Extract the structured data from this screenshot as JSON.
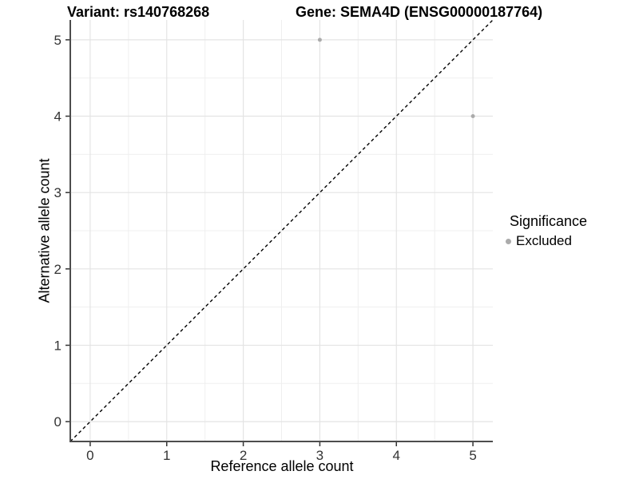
{
  "titles": {
    "variant": "Variant: rs140768268",
    "gene": "Gene: SEMA4D (ENSG00000187764)"
  },
  "legend": {
    "title": "Significance",
    "items": [
      {
        "label": "Excluded",
        "color": "#ababab",
        "marker": "circle-icon"
      }
    ]
  },
  "colors": {
    "point": "#ababab",
    "grid_major": "#e4e4e4",
    "grid_minor": "#efefef",
    "axis_line": "#4d4d4d",
    "tick_mark": "#333333",
    "tick_text": "#333333",
    "reference_line": "#000000",
    "background": "#ffffff"
  },
  "chart_data": {
    "type": "scatter",
    "title": "Variant: rs140768268 / Gene: SEMA4D (ENSG00000187764)",
    "xlabel": "Reference allele count",
    "ylabel": "Alternative allele count",
    "xlim": [
      -0.26,
      5.26
    ],
    "ylim": [
      -0.26,
      5.26
    ],
    "x_ticks": [
      0,
      1,
      2,
      3,
      4,
      5
    ],
    "y_ticks": [
      0,
      1,
      2,
      3,
      4,
      5
    ],
    "minor_grid_step": 0.5,
    "grid": "major+minor",
    "legend_position": "right",
    "series": [
      {
        "name": "Excluded",
        "color": "#ababab",
        "points": [
          {
            "x": 3,
            "y": 5
          },
          {
            "x": 5,
            "y": 4
          }
        ]
      }
    ],
    "reference_line": {
      "type": "identity",
      "style": "dashed",
      "color": "#000000"
    }
  }
}
